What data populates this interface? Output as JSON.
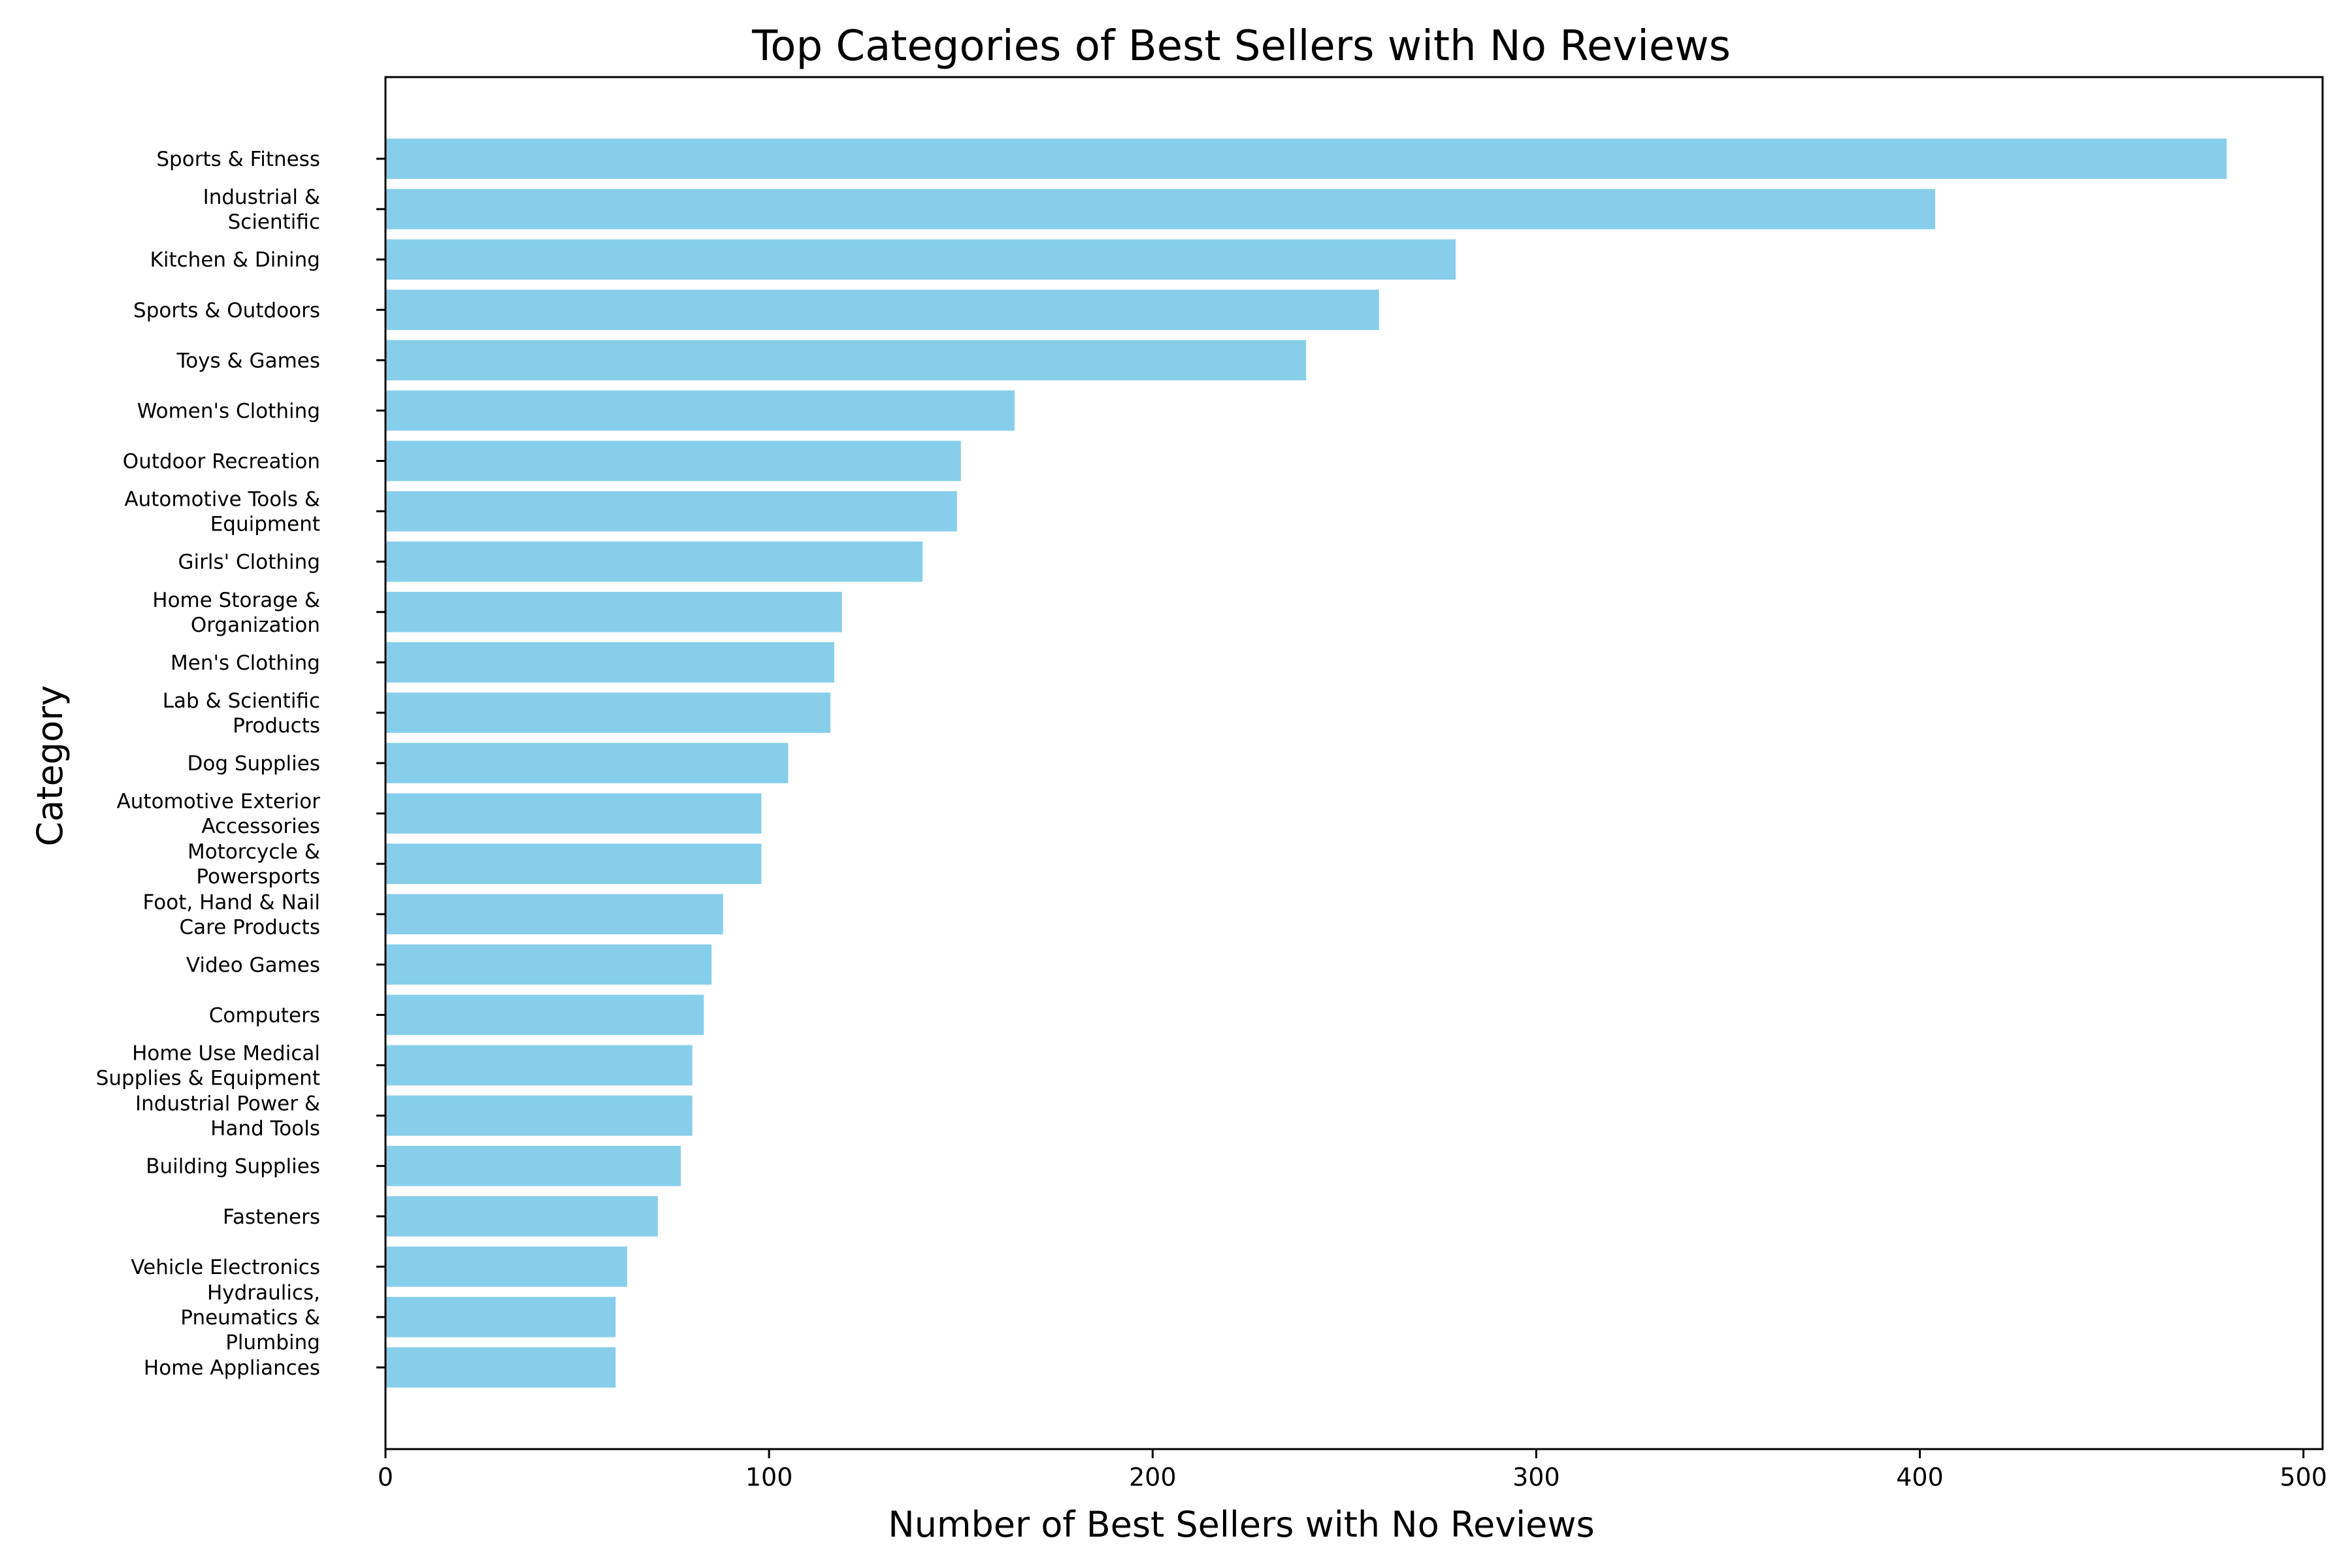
{
  "chart_data": {
    "type": "bar",
    "orientation": "horizontal",
    "title": "Top Categories of Best Sellers with No Reviews",
    "xlabel": "Number of Best Sellers with No Reviews",
    "ylabel": "Category",
    "xlim": [
      0,
      505
    ],
    "xticks": [
      0,
      100,
      200,
      300,
      400,
      500
    ],
    "grid": false,
    "bar_color": "#87CEEB",
    "categories": [
      "Sports & Fitness",
      "Industrial &\nScientific",
      "Kitchen & Dining",
      "Sports & Outdoors",
      "Toys & Games",
      "Women's Clothing",
      "Outdoor Recreation",
      "Automotive Tools &\nEquipment",
      "Girls' Clothing",
      "Home Storage &\nOrganization",
      "Men's Clothing",
      "Lab & Scientific\nProducts",
      "Dog Supplies",
      "Automotive Exterior\nAccessories",
      "Motorcycle &\nPowersports",
      "Foot, Hand & Nail\nCare Products",
      "Video Games",
      "Computers",
      "Home Use Medical\nSupplies & Equipment",
      "Industrial Power &\nHand Tools",
      "Building Supplies",
      "Fasteners",
      "Vehicle Electronics",
      "Hydraulics,\nPneumatics &\nPlumbing",
      "Home Appliances"
    ],
    "values": [
      480,
      404,
      279,
      259,
      240,
      164,
      150,
      149,
      140,
      119,
      117,
      116,
      105,
      98,
      98,
      88,
      85,
      83,
      80,
      80,
      77,
      71,
      63,
      60,
      60
    ]
  }
}
